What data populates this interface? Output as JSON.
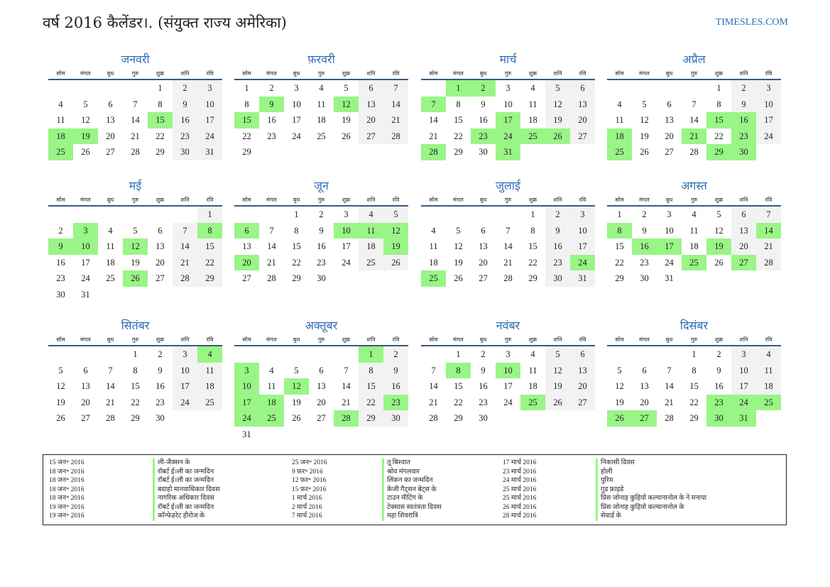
{
  "header": {
    "title": "वर्ष 2016 कैलेंडर।. (संयुक्त राज्य अमेरिका)",
    "brand": "TIMESLES.COM"
  },
  "colors": {
    "accent": "#2e6db4",
    "holiday": "#99f586",
    "weekend": "#f2f2f2"
  },
  "weekdays": [
    "सोम",
    "मंगल",
    "बुध",
    "गुरु",
    "शुक्र",
    "शनि",
    "रवि"
  ],
  "months": [
    {
      "name": "जनवरी",
      "start": 4,
      "days": 31,
      "holidays": [
        15,
        18,
        19,
        25
      ]
    },
    {
      "name": "फ़रवरी",
      "start": 0,
      "days": 29,
      "holidays": [
        9,
        12,
        15
      ]
    },
    {
      "name": "मार्च",
      "start": 1,
      "days": 31,
      "holidays": [
        1,
        2,
        7,
        17,
        23,
        24,
        25,
        26,
        28,
        31
      ]
    },
    {
      "name": "अप्रैल",
      "start": 4,
      "days": 30,
      "holidays": [
        15,
        16,
        18,
        21,
        23,
        25,
        29,
        30
      ]
    },
    {
      "name": "मई",
      "start": 6,
      "days": 31,
      "holidays": [
        3,
        8,
        9,
        10,
        12,
        26
      ]
    },
    {
      "name": "जून",
      "start": 2,
      "days": 30,
      "holidays": [
        6,
        10,
        11,
        12,
        19,
        20
      ]
    },
    {
      "name": "जुलाई",
      "start": 4,
      "days": 31,
      "holidays": [
        24,
        25
      ]
    },
    {
      "name": "अगस्त",
      "start": 0,
      "days": 31,
      "holidays": [
        8,
        14,
        16,
        17,
        19,
        25,
        27
      ]
    },
    {
      "name": "सितंबर",
      "start": 3,
      "days": 30,
      "holidays": [
        4
      ]
    },
    {
      "name": "अक्तूबर",
      "start": 5,
      "days": 31,
      "holidays": [
        1,
        3,
        10,
        12,
        17,
        18,
        23,
        24,
        25,
        28
      ]
    },
    {
      "name": "नवंबर",
      "start": 1,
      "days": 30,
      "holidays": [
        8,
        10,
        25
      ]
    },
    {
      "name": "दिसंबर",
      "start": 3,
      "days": 31,
      "holidays": [
        23,
        24,
        25,
        26,
        27,
        30,
        31
      ]
    }
  ],
  "holiday_list": [
    [
      {
        "date": "15 जन॰ 2016",
        "name": "ली-जैक्सन के"
      },
      {
        "date": "18 जन॰ 2016",
        "name": "रॉबर्ट ई।ली का जन्मदिन"
      },
      {
        "date": "18 जन॰ 2016",
        "name": "रॉबर्ट ई।ली का जन्मदिन"
      },
      {
        "date": "18 जन॰ 2016",
        "name": "बदाहो मानवाधिकार दिवस"
      },
      {
        "date": "18 जन॰ 2016",
        "name": "नागरिक अधिकार दिवस"
      },
      {
        "date": "19 जन॰ 2016",
        "name": "रॉबर्ट ई।ली का जन्मदिन"
      },
      {
        "date": "19 जन॰ 2016",
        "name": "कॉन्फेडरेट हीरोज के"
      }
    ],
    [
      {
        "date": "25 जन॰ 2016",
        "name": "तू बिश्वात"
      },
      {
        "date": "9 फ़र॰ 2016",
        "name": "श्रोव मंगलवार"
      },
      {
        "date": "12 फ़र॰ 2016",
        "name": "लिंकन का जन्मदिन"
      },
      {
        "date": "15 फ़र॰ 2016",
        "name": "केजी गैट्सन बेट्स के"
      },
      {
        "date": "1 मार्च 2016",
        "name": "टाउन मीटिंग के"
      },
      {
        "date": "2 मार्च 2016",
        "name": "टेक्सास स्वतंत्रता दिवस"
      },
      {
        "date": "7 मार्च 2016",
        "name": "महा शिवरात्रि"
      }
    ],
    [
      {
        "date": "17 मार्च 2016",
        "name": "निकासी दिवस"
      },
      {
        "date": "23 मार्च 2016",
        "name": "होली"
      },
      {
        "date": "24 मार्च 2016",
        "name": "पुरिम"
      },
      {
        "date": "25 मार्च 2016",
        "name": "गुड फ्राइडे"
      },
      {
        "date": "25 मार्च 2016",
        "name": "प्रिंस जोनाह कुहियो कल्यानानोल के ने मनाया"
      },
      {
        "date": "26 मार्च 2016",
        "name": "प्रिंस जोनाह कुहियो कल्यानानोल के"
      },
      {
        "date": "28 मार्च 2016",
        "name": "सेवार्ड के"
      }
    ]
  ]
}
